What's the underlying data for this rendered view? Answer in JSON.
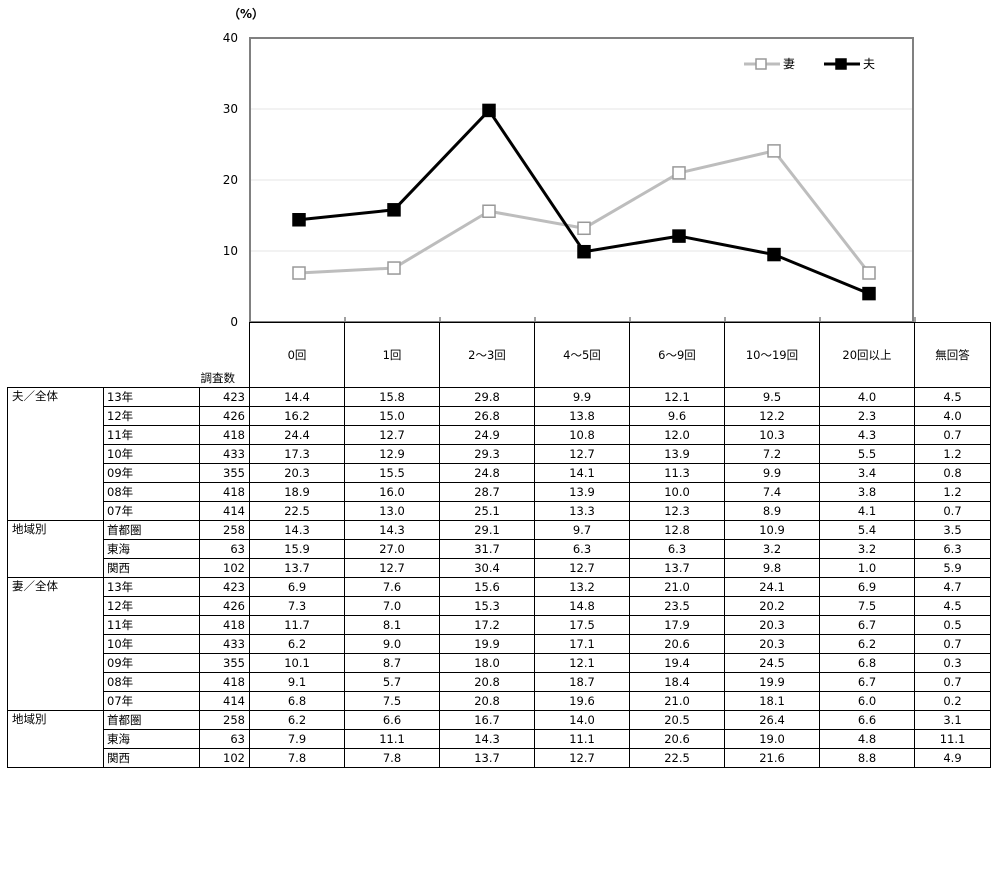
{
  "chart_data": {
    "type": "line",
    "unit_label": "（%）",
    "ylim": [
      0,
      40
    ],
    "yticks": [
      0,
      10,
      20,
      30,
      40
    ],
    "categories": [
      "0回",
      "1回",
      "2～3回",
      "4～5回",
      "6～9回",
      "10～19回",
      "20回以上"
    ],
    "series": [
      {
        "name": "妻",
        "values": [
          6.9,
          7.6,
          15.6,
          13.2,
          21.0,
          24.1,
          6.9
        ],
        "color": "#bdbdbd",
        "marker": "hollow-square"
      },
      {
        "name": "夫",
        "values": [
          14.4,
          15.8,
          29.8,
          9.9,
          12.1,
          9.5,
          4.0
        ],
        "color": "#000000",
        "marker": "filled-square"
      }
    ],
    "legend_position": "top-right",
    "grid": "horizontal-light"
  },
  "table": {
    "count_header": "調査数",
    "columns": [
      "0回",
      "1回",
      "2～3回",
      "4～5回",
      "6～9回",
      "10～19回",
      "20回以上",
      "無回答"
    ],
    "groups": [
      {
        "label": "夫／全体",
        "rows": [
          {
            "label": "13年",
            "count": "423",
            "values": [
              "14.4",
              "15.8",
              "29.8",
              "9.9",
              "12.1",
              "9.5",
              "4.0",
              "4.5"
            ]
          },
          {
            "label": "12年",
            "count": "426",
            "values": [
              "16.2",
              "15.0",
              "26.8",
              "13.8",
              "9.6",
              "12.2",
              "2.3",
              "4.0"
            ]
          },
          {
            "label": "11年",
            "count": "418",
            "values": [
              "24.4",
              "12.7",
              "24.9",
              "10.8",
              "12.0",
              "10.3",
              "4.3",
              "0.7"
            ]
          },
          {
            "label": "10年",
            "count": "433",
            "values": [
              "17.3",
              "12.9",
              "29.3",
              "12.7",
              "13.9",
              "7.2",
              "5.5",
              "1.2"
            ]
          },
          {
            "label": "09年",
            "count": "355",
            "values": [
              "20.3",
              "15.5",
              "24.8",
              "14.1",
              "11.3",
              "9.9",
              "3.4",
              "0.8"
            ]
          },
          {
            "label": "08年",
            "count": "418",
            "values": [
              "18.9",
              "16.0",
              "28.7",
              "13.9",
              "10.0",
              "7.4",
              "3.8",
              "1.2"
            ]
          },
          {
            "label": "07年",
            "count": "414",
            "values": [
              "22.5",
              "13.0",
              "25.1",
              "13.3",
              "12.3",
              "8.9",
              "4.1",
              "0.7"
            ]
          }
        ]
      },
      {
        "label": "地域別",
        "rows": [
          {
            "label": "首都圏",
            "count": "258",
            "values": [
              "14.3",
              "14.3",
              "29.1",
              "9.7",
              "12.8",
              "10.9",
              "5.4",
              "3.5"
            ]
          },
          {
            "label": "東海",
            "count": "63",
            "values": [
              "15.9",
              "27.0",
              "31.7",
              "6.3",
              "6.3",
              "3.2",
              "3.2",
              "6.3"
            ]
          },
          {
            "label": "関西",
            "count": "102",
            "values": [
              "13.7",
              "12.7",
              "30.4",
              "12.7",
              "13.7",
              "9.8",
              "1.0",
              "5.9"
            ]
          }
        ]
      },
      {
        "label": "妻／全体",
        "rows": [
          {
            "label": "13年",
            "count": "423",
            "values": [
              "6.9",
              "7.6",
              "15.6",
              "13.2",
              "21.0",
              "24.1",
              "6.9",
              "4.7"
            ]
          },
          {
            "label": "12年",
            "count": "426",
            "values": [
              "7.3",
              "7.0",
              "15.3",
              "14.8",
              "23.5",
              "20.2",
              "7.5",
              "4.5"
            ]
          },
          {
            "label": "11年",
            "count": "418",
            "values": [
              "11.7",
              "8.1",
              "17.2",
              "17.5",
              "17.9",
              "20.3",
              "6.7",
              "0.5"
            ]
          },
          {
            "label": "10年",
            "count": "433",
            "values": [
              "6.2",
              "9.0",
              "19.9",
              "17.1",
              "20.6",
              "20.3",
              "6.2",
              "0.7"
            ]
          },
          {
            "label": "09年",
            "count": "355",
            "values": [
              "10.1",
              "8.7",
              "18.0",
              "12.1",
              "19.4",
              "24.5",
              "6.8",
              "0.3"
            ]
          },
          {
            "label": "08年",
            "count": "418",
            "values": [
              "9.1",
              "5.7",
              "20.8",
              "18.7",
              "18.4",
              "19.9",
              "6.7",
              "0.7"
            ]
          },
          {
            "label": "07年",
            "count": "414",
            "values": [
              "6.8",
              "7.5",
              "20.8",
              "19.6",
              "21.0",
              "18.1",
              "6.0",
              "0.2"
            ]
          }
        ]
      },
      {
        "label": "地域別",
        "rows": [
          {
            "label": "首都圏",
            "count": "258",
            "values": [
              "6.2",
              "6.6",
              "16.7",
              "14.0",
              "20.5",
              "26.4",
              "6.6",
              "3.1"
            ]
          },
          {
            "label": "東海",
            "count": "63",
            "values": [
              "7.9",
              "11.1",
              "14.3",
              "11.1",
              "20.6",
              "19.0",
              "4.8",
              "11.1"
            ]
          },
          {
            "label": "関西",
            "count": "102",
            "values": [
              "7.8",
              "7.8",
              "13.7",
              "12.7",
              "22.5",
              "21.6",
              "8.8",
              "4.9"
            ]
          }
        ]
      }
    ]
  }
}
